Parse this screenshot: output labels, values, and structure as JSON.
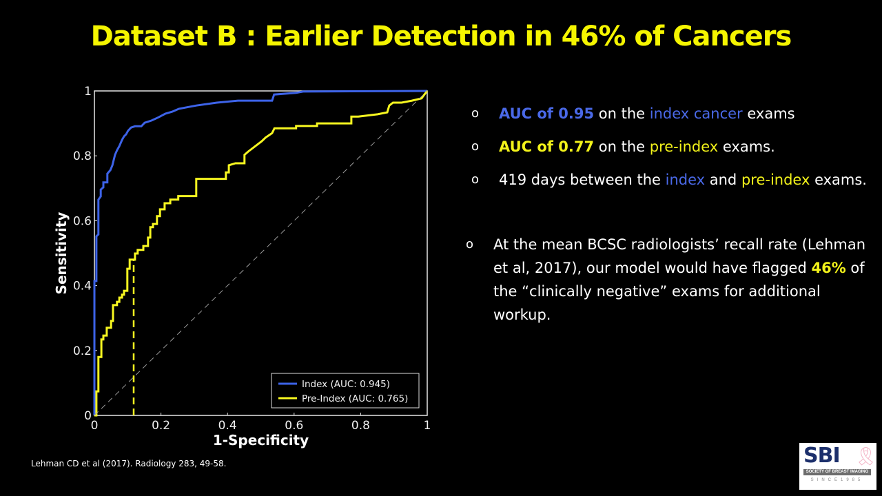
{
  "slide": {
    "title": "Dataset B : Earlier Detection in 46% of Cancers",
    "bullets": [
      {
        "segments": [
          {
            "text": "AUC of 0.95",
            "style": "blue bold"
          },
          {
            "text": " on the ",
            "style": ""
          },
          {
            "text": "index cancer",
            "style": "blue"
          },
          {
            "text": " exams",
            "style": ""
          }
        ]
      },
      {
        "segments": [
          {
            "text": "AUC of 0.77",
            "style": "yellow bold"
          },
          {
            "text": " on the ",
            "style": ""
          },
          {
            "text": "pre-index",
            "style": "yellow"
          },
          {
            "text": " exams.",
            "style": ""
          }
        ]
      },
      {
        "segments": [
          {
            "text": "419 days between the ",
            "style": ""
          },
          {
            "text": "index",
            "style": "blue"
          },
          {
            "text": " and ",
            "style": ""
          },
          {
            "text": "pre-index",
            "style": "yellow"
          },
          {
            "text": " exams.",
            "style": ""
          }
        ]
      }
    ],
    "bullet_main": {
      "segments": [
        {
          "text": "At the mean BCSC radiologists’ recall rate (Lehman et al, 2017), our model would have flagged ",
          "style": ""
        },
        {
          "text": "46%",
          "style": "yellow bold"
        },
        {
          "text": " of the “clinically negative” exams for additional workup.",
          "style": ""
        }
      ]
    },
    "bullet_marker": "o",
    "reference": "Lehman CD et al (2017). Radiology 283, 49-58.",
    "logo": {
      "name": "SBI",
      "band_text": "SOCIETY OF BREAST IMAGING",
      "since_text": "SINCE1985",
      "ribbon_icon": "pink-ribbon-icon"
    },
    "colors": {
      "background": "#000000",
      "title": "#f5f500",
      "index": "#3d63e8",
      "pre_index": "#f7f720",
      "axes": "#e6e6e6",
      "diagonal": "#9a9a9a"
    }
  },
  "chart_data": {
    "type": "line",
    "title": "",
    "xlabel": "1-Specificity",
    "ylabel": "Sensitivity",
    "xlim": [
      0,
      1
    ],
    "ylim": [
      0,
      1
    ],
    "xticks": [
      "0",
      "0.2",
      "0.4",
      "0.6",
      "0.8",
      "1"
    ],
    "yticks": [
      "0",
      "0.2",
      "0.4",
      "0.6",
      "0.8",
      "1"
    ],
    "grid": false,
    "legend_position": "lower right",
    "series": [
      {
        "name": "Index (AUC: 0.945)",
        "color": "#3d63e8",
        "auc": 0.945,
        "x": [
          0,
          0,
          0.006,
          0.006,
          0.012,
          0.012,
          0.019,
          0.019,
          0.027,
          0.027,
          0.039,
          0.039,
          0.048,
          0.054,
          0.062,
          0.068,
          0.075,
          0.083,
          0.089,
          0.095,
          0.101,
          0.11,
          0.122,
          0.141,
          0.151,
          0.172,
          0.193,
          0.213,
          0.234,
          0.254,
          0.306,
          0.368,
          0.431,
          0.534,
          0.54,
          0.606,
          0.627,
          1.0
        ],
        "y": [
          0,
          0.414,
          0.414,
          0.552,
          0.558,
          0.665,
          0.675,
          0.696,
          0.703,
          0.718,
          0.718,
          0.745,
          0.756,
          0.771,
          0.803,
          0.817,
          0.83,
          0.849,
          0.86,
          0.866,
          0.877,
          0.887,
          0.891,
          0.891,
          0.902,
          0.909,
          0.919,
          0.93,
          0.936,
          0.945,
          0.955,
          0.964,
          0.97,
          0.97,
          0.989,
          0.994,
          0.998,
          1.0
        ]
      },
      {
        "name": "Pre-Index (AUC: 0.765)",
        "color": "#f7f720",
        "auc": 0.765,
        "x": [
          0,
          0.006,
          0.006,
          0.012,
          0.012,
          0.021,
          0.021,
          0.027,
          0.027,
          0.037,
          0.037,
          0.05,
          0.05,
          0.056,
          0.056,
          0.068,
          0.068,
          0.075,
          0.075,
          0.083,
          0.083,
          0.089,
          0.089,
          0.099,
          0.099,
          0.106,
          0.106,
          0.122,
          0.122,
          0.13,
          0.13,
          0.147,
          0.147,
          0.161,
          0.161,
          0.168,
          0.168,
          0.176,
          0.176,
          0.188,
          0.188,
          0.197,
          0.197,
          0.211,
          0.211,
          0.228,
          0.228,
          0.252,
          0.252,
          0.306,
          0.306,
          0.395,
          0.395,
          0.404,
          0.404,
          0.424,
          0.451,
          0.451,
          0.462,
          0.503,
          0.503,
          0.514,
          0.534,
          0.541,
          0.606,
          0.606,
          0.669,
          0.669,
          0.772,
          0.772,
          0.793,
          0.851,
          0.88,
          0.886,
          0.897,
          0.923,
          0.954,
          0.983,
          0.99,
          1.0
        ],
        "y": [
          0,
          0,
          0.074,
          0.074,
          0.18,
          0.18,
          0.234,
          0.234,
          0.246,
          0.246,
          0.27,
          0.27,
          0.291,
          0.291,
          0.34,
          0.34,
          0.35,
          0.35,
          0.363,
          0.363,
          0.372,
          0.372,
          0.384,
          0.384,
          0.452,
          0.452,
          0.48,
          0.48,
          0.499,
          0.499,
          0.51,
          0.51,
          0.522,
          0.522,
          0.548,
          0.548,
          0.58,
          0.58,
          0.59,
          0.59,
          0.614,
          0.614,
          0.635,
          0.635,
          0.654,
          0.654,
          0.665,
          0.665,
          0.676,
          0.676,
          0.729,
          0.729,
          0.749,
          0.749,
          0.771,
          0.777,
          0.777,
          0.803,
          0.813,
          0.845,
          0.845,
          0.856,
          0.87,
          0.885,
          0.885,
          0.892,
          0.892,
          0.9,
          0.9,
          0.921,
          0.921,
          0.928,
          0.934,
          0.955,
          0.964,
          0.964,
          0.97,
          0.977,
          0.987,
          1.0
        ]
      },
      {
        "name": "chance",
        "color": "#9a9a9a",
        "dashed": true,
        "x": [
          0,
          1
        ],
        "y": [
          0,
          1
        ]
      }
    ],
    "annotations": [
      {
        "type": "vertical-dashed-line",
        "color": "#f7f720",
        "x": 0.118,
        "y_from": 0,
        "y_to": 0.48,
        "meaning": "mean BCSC radiologists' recall rate operating point"
      }
    ]
  }
}
